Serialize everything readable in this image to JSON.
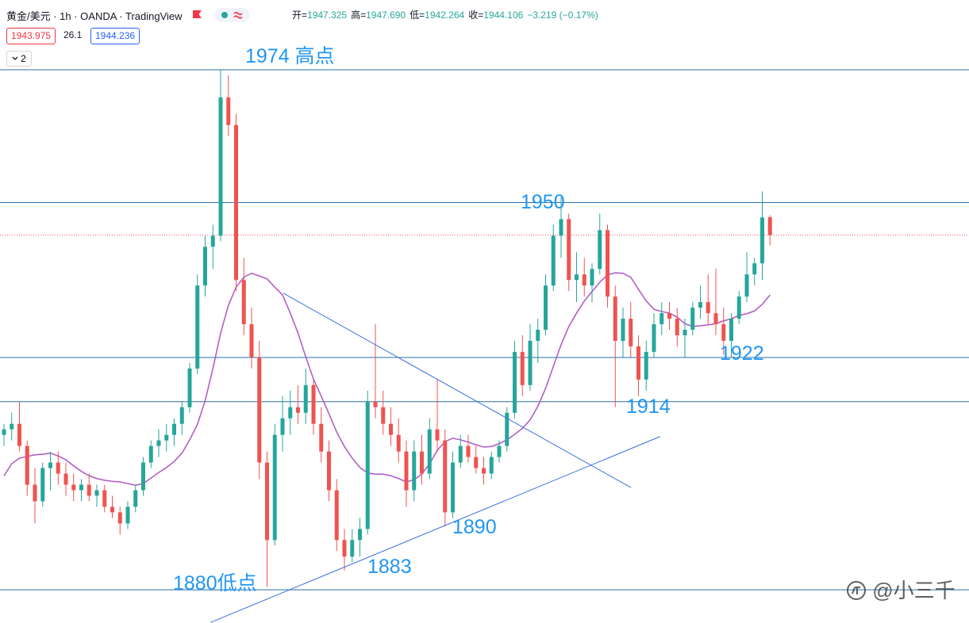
{
  "header": {
    "title": "黄金/美元 · 1h · OANDA · TradingView",
    "ohlc": [
      {
        "key": "开=",
        "value": "1947.325"
      },
      {
        "key": "高=",
        "value": "1947.690"
      },
      {
        "key": "低=",
        "value": "1942.264"
      },
      {
        "key": "收=",
        "value": "1944.106"
      }
    ],
    "change": "−3.219 (−0.17%)",
    "bid": "1943.975",
    "spread": "26.1",
    "ask": "1944.236",
    "indicator_count": "2"
  },
  "watermark": "@小三千",
  "chart_data": {
    "type": "candlestick",
    "ylim": [
      1874.0,
      1986.6
    ],
    "up_color": "#26a69a",
    "down_color": "#ef5350",
    "candles": [
      [
        1908,
        1910,
        1906,
        1909
      ],
      [
        1909,
        1912,
        1907,
        1910
      ],
      [
        1910,
        1914,
        1905,
        1906
      ],
      [
        1906,
        1907,
        1897,
        1899
      ],
      [
        1899,
        1902,
        1892,
        1896
      ],
      [
        1896,
        1903,
        1895,
        1902
      ],
      [
        1902,
        1905,
        1898,
        1903
      ],
      [
        1903,
        1905,
        1899,
        1901
      ],
      [
        1901,
        1903,
        1897,
        1899
      ],
      [
        1899,
        1901,
        1896,
        1898
      ],
      [
        1898,
        1900,
        1896,
        1899
      ],
      [
        1899,
        1901,
        1896,
        1897
      ],
      [
        1897,
        1899,
        1895,
        1898
      ],
      [
        1898,
        1899,
        1894,
        1895
      ],
      [
        1895,
        1897,
        1893,
        1894
      ],
      [
        1894,
        1895,
        1890,
        1892
      ],
      [
        1892,
        1896,
        1891,
        1895
      ],
      [
        1895,
        1899,
        1894,
        1898
      ],
      [
        1898,
        1904,
        1897,
        1903
      ],
      [
        1903,
        1907,
        1902,
        1906
      ],
      [
        1906,
        1909,
        1904,
        1907
      ],
      [
        1907,
        1910,
        1905,
        1908
      ],
      [
        1908,
        1911,
        1906,
        1910
      ],
      [
        1910,
        1914,
        1908,
        1913
      ],
      [
        1913,
        1921,
        1912,
        1920
      ],
      [
        1920,
        1937,
        1919,
        1935
      ],
      [
        1935,
        1944,
        1933,
        1942
      ],
      [
        1942,
        1946,
        1938,
        1944
      ],
      [
        1944,
        1974,
        1943,
        1969
      ],
      [
        1969,
        1973,
        1962,
        1964
      ],
      [
        1964,
        1966,
        1934,
        1936
      ],
      [
        1936,
        1940,
        1926,
        1928
      ],
      [
        1928,
        1931,
        1920,
        1922
      ],
      [
        1922,
        1925,
        1900,
        1903
      ],
      [
        1903,
        1905,
        1880.5,
        1889
      ],
      [
        1889,
        1910,
        1888,
        1908
      ],
      [
        1908,
        1915,
        1905,
        1911
      ],
      [
        1911,
        1916,
        1908,
        1913
      ],
      [
        1913,
        1917,
        1910,
        1912
      ],
      [
        1912,
        1920,
        1910,
        1917
      ],
      [
        1917,
        1918,
        1908,
        1910
      ],
      [
        1910,
        1913,
        1903,
        1905
      ],
      [
        1905,
        1907,
        1896,
        1898
      ],
      [
        1898,
        1900,
        1887,
        1889
      ],
      [
        1889,
        1891,
        1883.5,
        1886
      ],
      [
        1886,
        1891,
        1885,
        1889
      ],
      [
        1889,
        1893,
        1886,
        1891
      ],
      [
        1891,
        1916,
        1890,
        1914
      ],
      [
        1914,
        1928,
        1911,
        1913
      ],
      [
        1913,
        1916,
        1908,
        1910
      ],
      [
        1910,
        1913,
        1906,
        1908
      ],
      [
        1908,
        1911,
        1903,
        1905
      ],
      [
        1905,
        1907,
        1895,
        1898
      ],
      [
        1898,
        1907,
        1896,
        1905
      ],
      [
        1905,
        1908,
        1899,
        1901
      ],
      [
        1901,
        1911,
        1900,
        1909
      ],
      [
        1909,
        1918,
        1905,
        1907
      ],
      [
        1907,
        1909,
        1891.5,
        1894
      ],
      [
        1894,
        1905,
        1893,
        1903
      ],
      [
        1903,
        1908,
        1902,
        1906
      ],
      [
        1906,
        1908,
        1903,
        1904
      ],
      [
        1904,
        1906,
        1901,
        1902
      ],
      [
        1902,
        1904,
        1899,
        1901
      ],
      [
        1901,
        1905,
        1900,
        1904
      ],
      [
        1904,
        1907,
        1903,
        1906
      ],
      [
        1906,
        1913,
        1905,
        1912
      ],
      [
        1912,
        1925,
        1911,
        1923
      ],
      [
        1923,
        1926,
        1915,
        1917
      ],
      [
        1917,
        1928,
        1916,
        1925
      ],
      [
        1925,
        1929,
        1921,
        1927
      ],
      [
        1927,
        1937,
        1926,
        1935
      ],
      [
        1935,
        1946,
        1934,
        1944
      ],
      [
        1944,
        1951,
        1940,
        1947
      ],
      [
        1947,
        1948,
        1934,
        1936
      ],
      [
        1936,
        1941,
        1932,
        1937
      ],
      [
        1937,
        1940,
        1933,
        1935
      ],
      [
        1935,
        1939,
        1932,
        1938
      ],
      [
        1938,
        1948,
        1937,
        1945
      ],
      [
        1945,
        1946,
        1931,
        1933
      ],
      [
        1933,
        1935,
        1913,
        1925
      ],
      [
        1925,
        1931,
        1922,
        1929
      ],
      [
        1929,
        1932,
        1922,
        1924
      ],
      [
        1924,
        1926,
        1915,
        1918
      ],
      [
        1918,
        1925,
        1916,
        1923
      ],
      [
        1923,
        1930,
        1922,
        1928
      ],
      [
        1928,
        1932,
        1926,
        1930
      ],
      [
        1930,
        1932,
        1927,
        1929
      ],
      [
        1929,
        1931,
        1924,
        1926
      ],
      [
        1926,
        1929,
        1922,
        1927
      ],
      [
        1927,
        1932,
        1926,
        1931
      ],
      [
        1931,
        1935,
        1929,
        1932
      ],
      [
        1932,
        1937,
        1928,
        1930
      ],
      [
        1930,
        1938,
        1926,
        1928
      ],
      [
        1928,
        1931,
        1922.5,
        1925
      ],
      [
        1925,
        1930,
        1922,
        1929
      ],
      [
        1929,
        1934,
        1928,
        1933
      ],
      [
        1933,
        1941,
        1932,
        1937
      ],
      [
        1937,
        1940,
        1935,
        1939
      ],
      [
        1939,
        1952,
        1936,
        1947.3
      ],
      [
        1947.325,
        1947.69,
        1942.264,
        1944.106
      ]
    ],
    "ma": {
      "color": "#b35fc4",
      "values": [
        1900.6,
        1902.8,
        1903.8,
        1904.1,
        1904.4,
        1904.5,
        1904.7,
        1904.2,
        1903.5,
        1902.4,
        1901.4,
        1900.6,
        1900.1,
        1899.8,
        1899.6,
        1899.5,
        1899.2,
        1898.9,
        1899.2,
        1900.2,
        1901.2,
        1902.1,
        1903.2,
        1904.7,
        1907.1,
        1909.9,
        1914.2,
        1920.0,
        1926.4,
        1931.4,
        1934.7,
        1936.5,
        1937.2,
        1936.7,
        1936.2,
        1934.7,
        1933.3,
        1930.0,
        1926.4,
        1922.1,
        1918.1,
        1915.0,
        1911.8,
        1908.5,
        1905.9,
        1903.8,
        1902.1,
        1901.1,
        1900.9,
        1900.9,
        1900.6,
        1900.1,
        1899.5,
        1899.9,
        1900.9,
        1902.8,
        1905.2,
        1906.8,
        1907.4,
        1907.1,
        1906.7,
        1906.2,
        1905.8,
        1905.9,
        1906.4,
        1907.1,
        1908.1,
        1909.2,
        1910.7,
        1913.2,
        1916.4,
        1920.4,
        1924.3,
        1927.6,
        1930.0,
        1932.2,
        1933.9,
        1935.6,
        1936.9,
        1937.3,
        1937.2,
        1936.5,
        1934.3,
        1932.2,
        1930.7,
        1930.3,
        1930.0,
        1929.3,
        1928.1,
        1927.6,
        1927.7,
        1927.9,
        1928.1,
        1928.6,
        1929.0,
        1929.6,
        1929.9,
        1930.4,
        1931.6,
        1933.3
      ]
    },
    "levels": [
      1974,
      1950,
      1922,
      1914,
      1880
    ],
    "level_color": "#2a6fa8",
    "trendlines": [
      {
        "x": [
          36.1,
          81.0
        ],
        "y": [
          1933.6,
          1898.5
        ]
      },
      {
        "x": [
          26.7,
          84.8
        ],
        "y": [
          1874.1,
          1907.7
        ]
      }
    ],
    "trend_color": "#3b6fe0",
    "annotations": [
      "1974 高点",
      "1950",
      "1922",
      "1914",
      "1890",
      "1883",
      "1880低点"
    ],
    "annotation_color": "#2196f3"
  }
}
